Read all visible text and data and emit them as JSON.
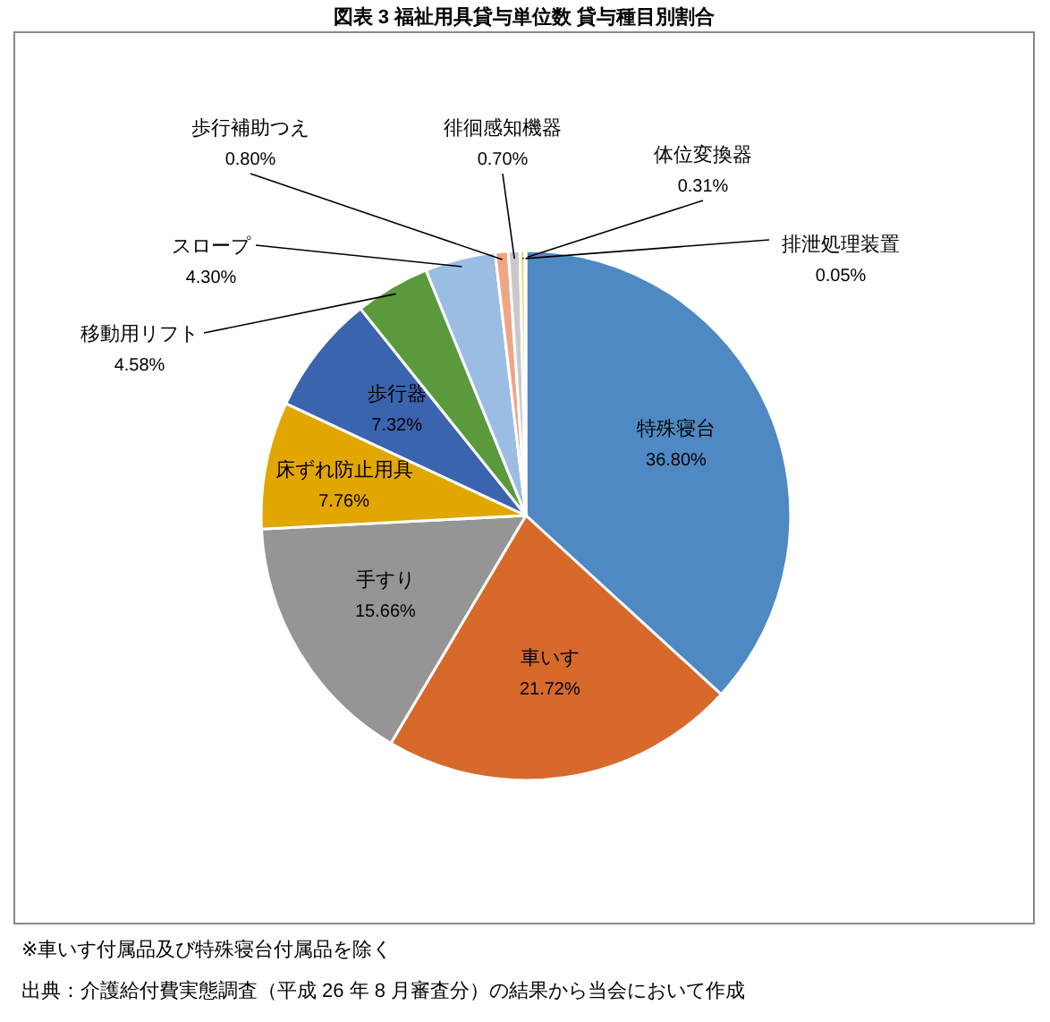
{
  "chart_data": {
    "type": "pie",
    "title": "図表 3  福祉用具貸与単位数  貸与種目別割合",
    "categories": [
      "特殊寝台",
      "車いす",
      "手すり",
      "床ずれ防止用具",
      "歩行器",
      "移動用リフト",
      "スロープ",
      "歩行補助つえ",
      "徘徊感知機器",
      "体位変換器",
      "排泄処理装置"
    ],
    "values": [
      36.8,
      21.72,
      15.66,
      7.76,
      7.32,
      4.58,
      4.3,
      0.8,
      0.7,
      0.31,
      0.05
    ],
    "value_labels": [
      "36.80%",
      "21.72%",
      "15.66%",
      "7.76%",
      "7.32%",
      "4.58%",
      "4.30%",
      "0.80%",
      "0.70%",
      "0.31%",
      "0.05%"
    ],
    "colors": [
      "#4f89c3",
      "#d7692b",
      "#959595",
      "#e2a600",
      "#3b64ae",
      "#5b9a3c",
      "#9cbde3",
      "#f0a585",
      "#c9c9c9",
      "#f6d27a",
      "#a9c5e6"
    ],
    "annotations": [
      "※車いす付属品及び特殊寝台付属品を除く",
      "出典：介護給付費実態調査（平成 26 年 8 月審査分）の結果から当会において作成"
    ]
  }
}
